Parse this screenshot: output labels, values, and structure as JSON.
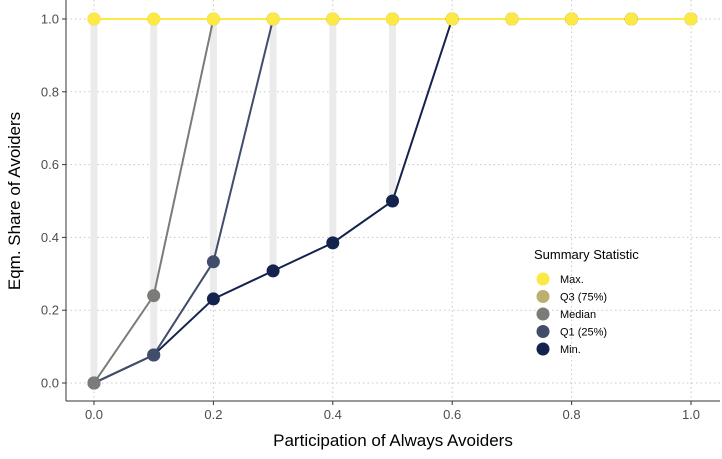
{
  "chart_data": {
    "type": "line",
    "xlabel": "Participation of Always Avoiders",
    "ylabel": "Eqm. Share of Avoiders",
    "xlim": [
      0,
      1
    ],
    "ylim": [
      0,
      1
    ],
    "x_ticks": [
      "0.0",
      "0.2",
      "0.4",
      "0.6",
      "0.8",
      "1.0"
    ],
    "y_ticks": [
      "0.0",
      "0.2",
      "0.4",
      "0.6",
      "0.8",
      "1.0"
    ],
    "grid": "dotted",
    "legend_title": "Summary Statistic",
    "legend_position": "right-inside",
    "x": [
      0,
      0.1,
      0.2,
      0.3,
      0.4,
      0.5,
      0.6,
      0.7,
      0.8,
      0.9,
      1.0
    ],
    "range_bars": "min-to-max, light grey",
    "series": [
      {
        "name": "Max.",
        "color": "#FDE945",
        "values": [
          1,
          1,
          1,
          1,
          1,
          1,
          1,
          1,
          1,
          1,
          1
        ]
      },
      {
        "name": "Q3 (75%)",
        "color": "#BCAF6F",
        "values": [
          1,
          1,
          1,
          1,
          1,
          1,
          1,
          1,
          1,
          1,
          1
        ]
      },
      {
        "name": "Median",
        "color": "#7C7B78",
        "values": [
          0,
          0.24,
          1,
          1,
          1,
          1,
          1,
          1,
          1,
          1,
          1
        ]
      },
      {
        "name": "Q1 (25%)",
        "color": "#414D6B",
        "values": [
          0,
          0.077,
          0.333,
          1,
          1,
          1,
          1,
          1,
          1,
          1,
          1
        ]
      },
      {
        "name": "Min.",
        "color": "#14234D",
        "values": [
          0,
          0.077,
          0.231,
          0.308,
          0.385,
          0.5,
          1,
          1,
          1,
          1,
          1
        ]
      }
    ]
  }
}
